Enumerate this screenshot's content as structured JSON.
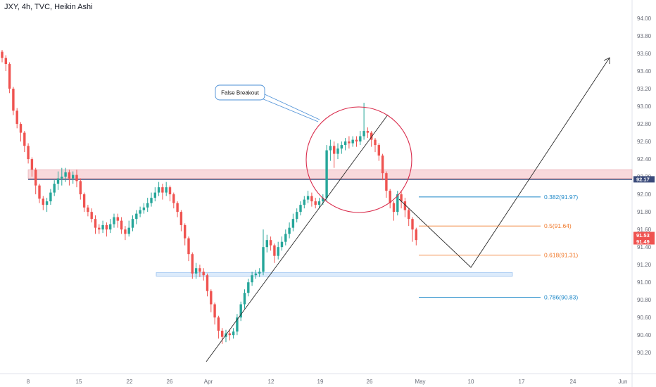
{
  "title": "JXY, 4h, TVC, Heikin Ashi",
  "colors": {
    "up": "#26a69a",
    "down": "#ef5350",
    "fib_blue": "#1e88c8",
    "fib_orange": "#f07a2c",
    "zone": "#f3b9bf",
    "circle": "#d92a4a",
    "support": "#9cc3ef"
  },
  "chart_data": {
    "type": "candlestick",
    "title": "JXY, 4h, TVC, Heikin Ashi",
    "ylim": [
      90.13,
      94.08
    ],
    "y_ticks": [
      "94.00",
      "93.80",
      "93.60",
      "93.40",
      "93.20",
      "93.00",
      "92.80",
      "92.60",
      "92.40",
      "92.20",
      "92.00",
      "91.80",
      "91.60",
      "91.40",
      "91.20",
      "91.00",
      "90.80",
      "90.60",
      "90.40",
      "90.20"
    ],
    "x_ticks": [
      "8",
      "15",
      "22",
      "26",
      "Apr",
      "12",
      "19",
      "26",
      "May",
      "10",
      "17",
      "24",
      "Jun"
    ],
    "price_tags": [
      {
        "label": "92.17",
        "value": 92.17,
        "color": "#3a4a7a"
      },
      {
        "label": "91.53",
        "value": 91.53,
        "color": "#ef5350"
      },
      {
        "label": "91.49",
        "value": 91.49,
        "color": "#ef5350"
      }
    ],
    "resistance_line": 92.17,
    "resistance_zone": [
      92.18,
      92.28
    ],
    "support_zone": [
      91.07,
      91.11
    ],
    "fib_levels": [
      {
        "label": "0.382(91.97)",
        "value": 91.97,
        "color": "#1e88c8"
      },
      {
        "label": "0.5(91.64)",
        "value": 91.64,
        "color": "#f07a2c"
      },
      {
        "label": "0.618(91.31)",
        "value": 91.31,
        "color": "#f07a2c"
      },
      {
        "label": "0.786(90.83)",
        "value": 90.83,
        "color": "#1e88c8"
      }
    ],
    "annotations": [
      {
        "text": "False Breakout"
      }
    ],
    "candles": [
      [
        93.62,
        93.55,
        93.64,
        93.5
      ],
      [
        93.55,
        93.48,
        93.58,
        93.4
      ],
      [
        93.48,
        93.2,
        93.5,
        93.15
      ],
      [
        93.2,
        92.95,
        93.22,
        92.9
      ],
      [
        92.95,
        92.8,
        92.98,
        92.75
      ],
      [
        92.8,
        92.7,
        92.82,
        92.6
      ],
      [
        92.7,
        92.55,
        92.72,
        92.48
      ],
      [
        92.55,
        92.4,
        92.58,
        92.35
      ],
      [
        92.4,
        92.28,
        92.42,
        92.2
      ],
      [
        92.28,
        92.1,
        92.3,
        92.0
      ],
      [
        92.1,
        91.95,
        92.12,
        91.9
      ],
      [
        91.95,
        91.88,
        91.98,
        91.82
      ],
      [
        91.88,
        91.92,
        91.96,
        91.8
      ],
      [
        91.92,
        92.02,
        92.06,
        91.88
      ],
      [
        92.02,
        92.12,
        92.16,
        91.98
      ],
      [
        92.12,
        92.18,
        92.26,
        92.05
      ],
      [
        92.18,
        92.2,
        92.3,
        92.1
      ],
      [
        92.2,
        92.25,
        92.3,
        92.14
      ],
      [
        92.25,
        92.18,
        92.28,
        92.1
      ],
      [
        92.18,
        92.22,
        92.26,
        92.12
      ],
      [
        92.22,
        92.15,
        92.28,
        92.08
      ],
      [
        92.15,
        92.0,
        92.18,
        91.94
      ],
      [
        92.0,
        91.85,
        92.02,
        91.8
      ],
      [
        91.85,
        91.8,
        91.88,
        91.75
      ],
      [
        91.8,
        91.72,
        91.84,
        91.68
      ],
      [
        91.72,
        91.62,
        91.76,
        91.55
      ],
      [
        91.62,
        91.6,
        91.66,
        91.55
      ],
      [
        91.6,
        91.65,
        91.7,
        91.56
      ],
      [
        91.65,
        91.6,
        91.68,
        91.52
      ],
      [
        91.6,
        91.66,
        91.72,
        91.56
      ],
      [
        91.66,
        91.74,
        91.78,
        91.62
      ],
      [
        91.74,
        91.7,
        91.78,
        91.62
      ],
      [
        91.7,
        91.6,
        91.74,
        91.55
      ],
      [
        91.6,
        91.55,
        91.64,
        91.48
      ],
      [
        91.55,
        91.62,
        91.7,
        91.52
      ],
      [
        91.62,
        91.72,
        91.76,
        91.58
      ],
      [
        91.72,
        91.78,
        91.82,
        91.66
      ],
      [
        91.78,
        91.82,
        91.86,
        91.74
      ],
      [
        91.82,
        91.85,
        91.9,
        91.78
      ],
      [
        91.85,
        91.9,
        91.96,
        91.8
      ],
      [
        91.9,
        91.96,
        92.02,
        91.86
      ],
      [
        91.96,
        92.02,
        92.08,
        91.92
      ],
      [
        92.02,
        92.08,
        92.14,
        91.98
      ],
      [
        92.08,
        92.02,
        92.12,
        91.94
      ],
      [
        92.02,
        92.08,
        92.14,
        91.98
      ],
      [
        92.08,
        92.0,
        92.1,
        91.92
      ],
      [
        92.0,
        91.9,
        92.02,
        91.84
      ],
      [
        91.9,
        91.8,
        91.92,
        91.74
      ],
      [
        91.8,
        91.65,
        91.82,
        91.58
      ],
      [
        91.65,
        91.5,
        91.67,
        91.42
      ],
      [
        91.5,
        91.32,
        91.52,
        91.24
      ],
      [
        91.32,
        91.1,
        91.34,
        91.04
      ],
      [
        91.1,
        91.16,
        91.22,
        91.04
      ],
      [
        91.16,
        91.12,
        91.2,
        91.06
      ],
      [
        91.12,
        91.08,
        91.16,
        91.02
      ],
      [
        91.08,
        90.9,
        91.1,
        90.84
      ],
      [
        90.9,
        90.75,
        90.92,
        90.66
      ],
      [
        90.75,
        90.6,
        90.77,
        90.52
      ],
      [
        90.6,
        90.45,
        90.62,
        90.36
      ],
      [
        90.45,
        90.38,
        90.48,
        90.3
      ],
      [
        90.38,
        90.42,
        90.46,
        90.32
      ],
      [
        90.42,
        90.4,
        90.46,
        90.34
      ],
      [
        90.4,
        90.44,
        90.48,
        90.36
      ],
      [
        90.44,
        90.6,
        90.64,
        90.4
      ],
      [
        90.6,
        90.75,
        90.78,
        90.56
      ],
      [
        90.75,
        90.88,
        90.92,
        90.7
      ],
      [
        90.88,
        91.0,
        91.04,
        90.84
      ],
      [
        91.0,
        91.08,
        91.12,
        90.96
      ],
      [
        91.08,
        91.1,
        91.14,
        91.04
      ],
      [
        91.1,
        91.12,
        91.16,
        91.06
      ],
      [
        91.12,
        91.4,
        91.6,
        91.08
      ],
      [
        91.4,
        91.48,
        91.54,
        91.34
      ],
      [
        91.48,
        91.42,
        91.52,
        91.36
      ],
      [
        91.42,
        91.3,
        91.44,
        91.22
      ],
      [
        91.3,
        91.4,
        91.46,
        91.26
      ],
      [
        91.4,
        91.46,
        91.52,
        91.36
      ],
      [
        91.46,
        91.55,
        91.6,
        91.42
      ],
      [
        91.55,
        91.62,
        91.68,
        91.5
      ],
      [
        91.62,
        91.72,
        91.78,
        91.58
      ],
      [
        91.72,
        91.8,
        91.84,
        91.68
      ],
      [
        91.8,
        91.88,
        91.92,
        91.76
      ],
      [
        91.88,
        91.94,
        91.98,
        91.84
      ],
      [
        91.94,
        91.98,
        92.04,
        91.9
      ],
      [
        91.98,
        91.92,
        92.02,
        91.86
      ],
      [
        91.92,
        91.88,
        91.96,
        91.84
      ],
      [
        91.88,
        91.92,
        91.96,
        91.84
      ],
      [
        91.92,
        91.96,
        92.0,
        91.88
      ],
      [
        91.96,
        92.5,
        92.56,
        91.92
      ],
      [
        92.5,
        92.55,
        92.62,
        92.38
      ],
      [
        92.55,
        92.46,
        92.6,
        92.3
      ],
      [
        92.46,
        92.52,
        92.58,
        92.4
      ],
      [
        92.52,
        92.56,
        92.6,
        92.46
      ],
      [
        92.56,
        92.6,
        92.64,
        92.5
      ],
      [
        92.6,
        92.58,
        92.66,
        92.52
      ],
      [
        92.58,
        92.62,
        92.66,
        92.54
      ],
      [
        92.62,
        92.6,
        92.66,
        92.54
      ],
      [
        92.6,
        92.66,
        92.72,
        92.56
      ],
      [
        92.66,
        92.72,
        93.04,
        92.62
      ],
      [
        92.72,
        92.7,
        92.76,
        92.64
      ],
      [
        92.7,
        92.62,
        92.72,
        92.54
      ],
      [
        92.62,
        92.56,
        92.64,
        92.48
      ],
      [
        92.56,
        92.44,
        92.58,
        92.38
      ],
      [
        92.44,
        92.24,
        92.46,
        92.16
      ],
      [
        92.24,
        92.04,
        92.26,
        91.96
      ],
      [
        92.04,
        91.9,
        92.06,
        91.84
      ],
      [
        91.9,
        91.8,
        91.92,
        91.7
      ],
      [
        91.8,
        92.0,
        92.04,
        91.76
      ],
      [
        92.0,
        91.92,
        92.04,
        91.84
      ],
      [
        91.92,
        91.82,
        91.96,
        91.74
      ],
      [
        91.82,
        91.72,
        91.84,
        91.64
      ],
      [
        91.72,
        91.6,
        91.74,
        91.46
      ],
      [
        91.6,
        91.48,
        91.62,
        91.42
      ]
    ]
  }
}
